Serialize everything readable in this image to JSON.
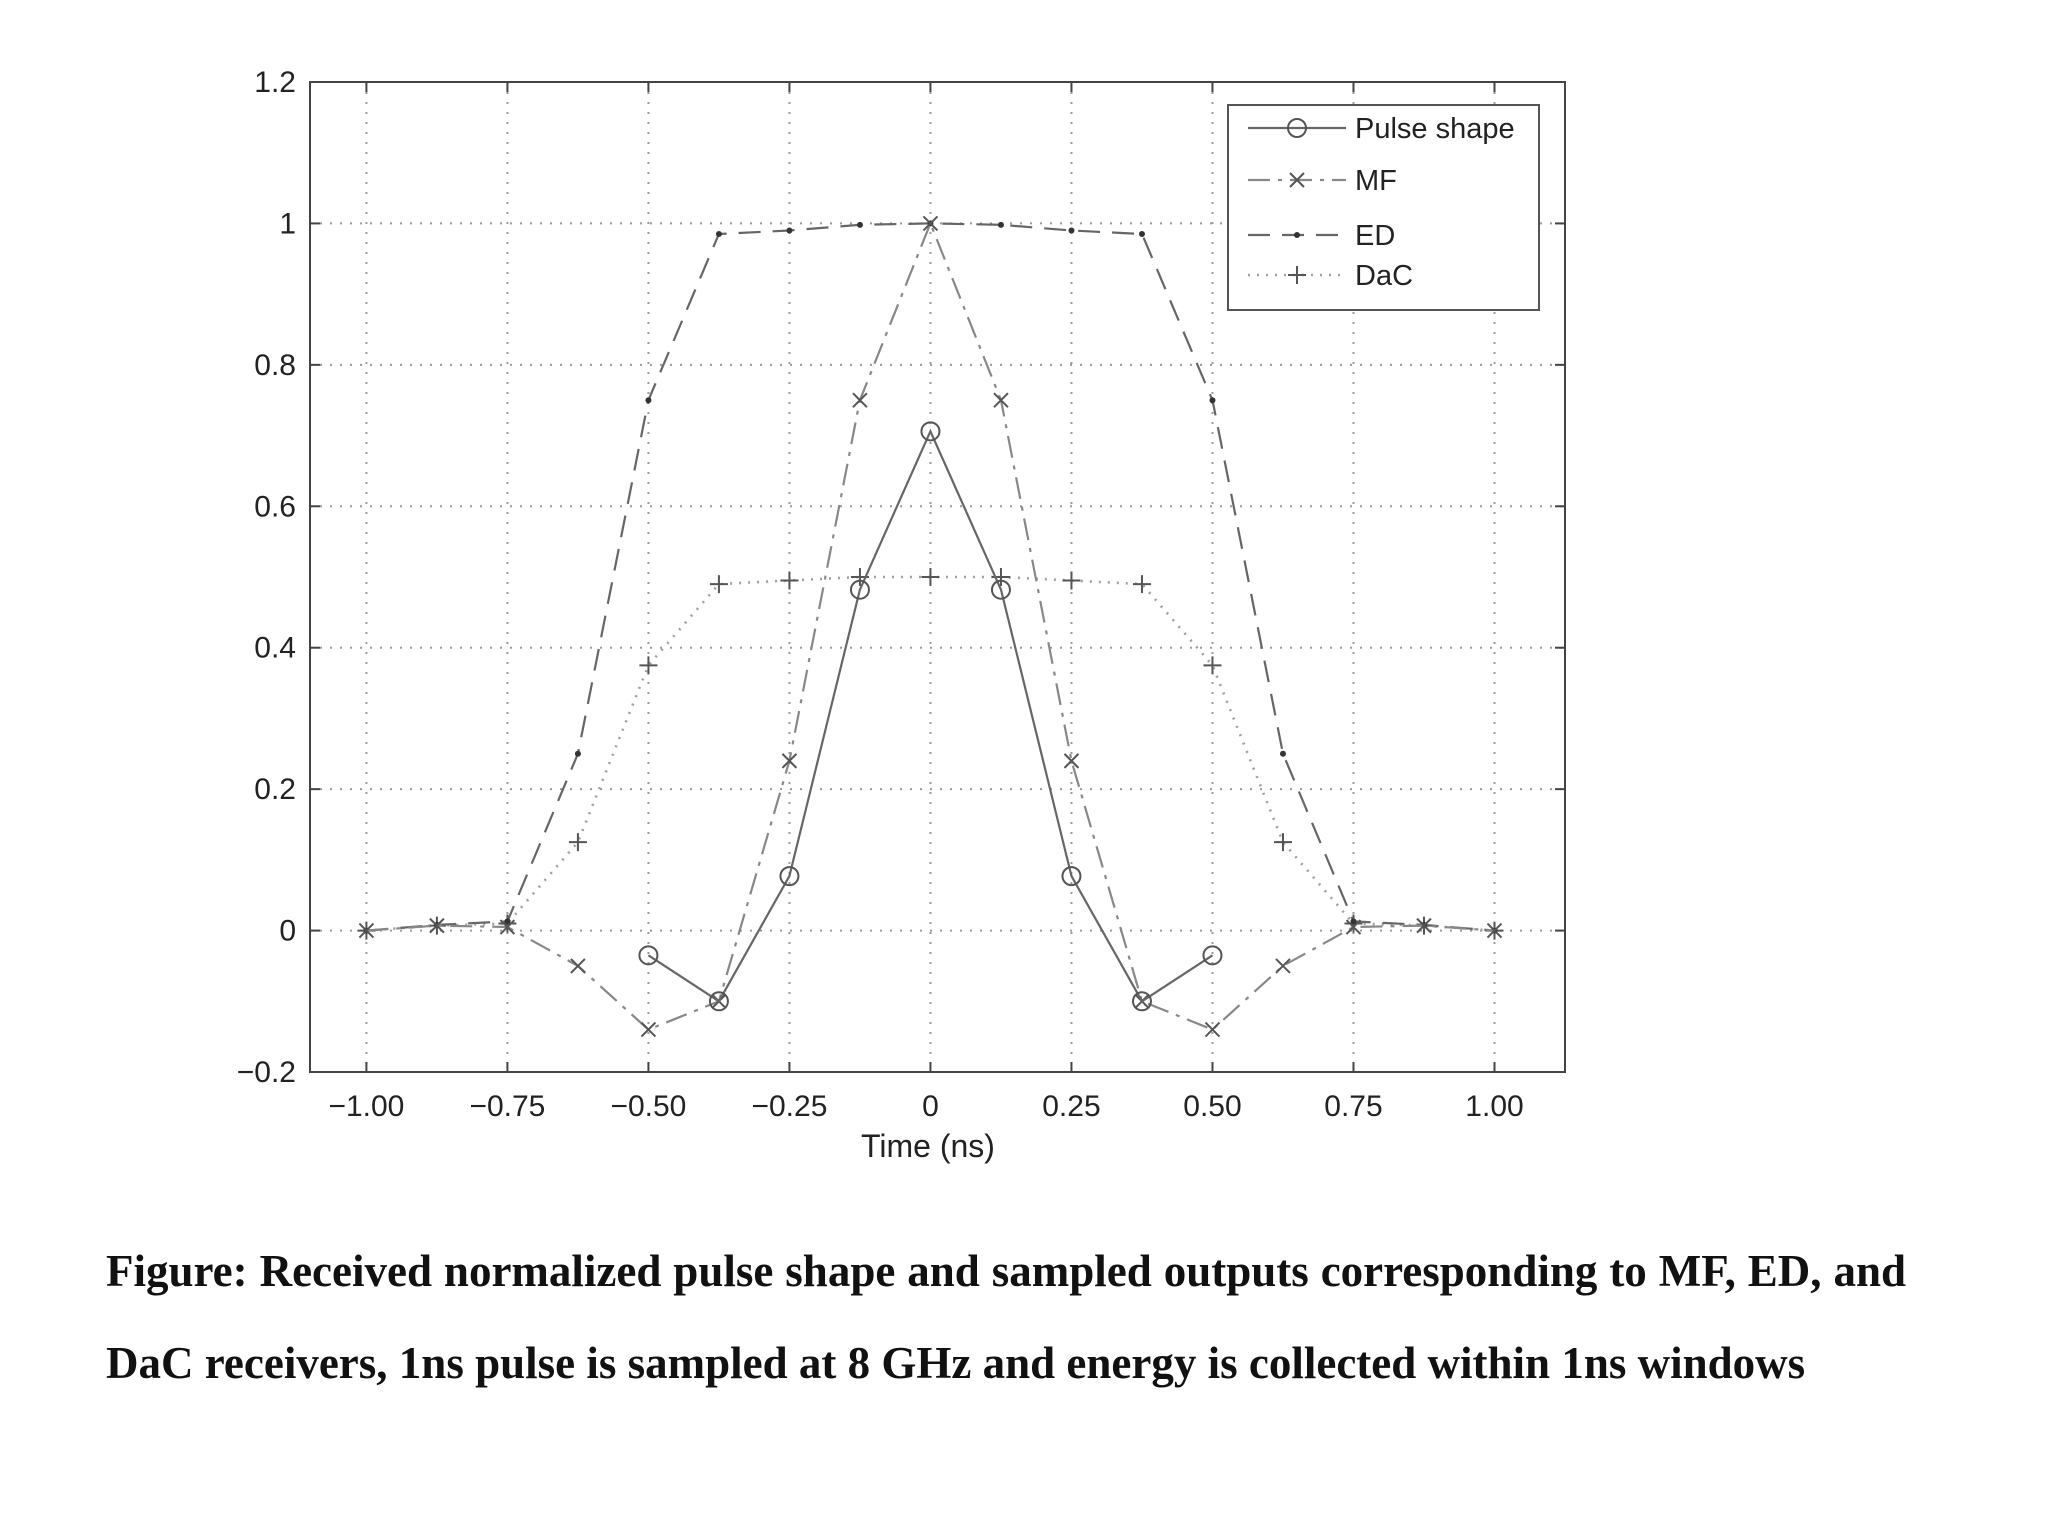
{
  "chart_data": {
    "type": "line",
    "xlabel": "Time (ns)",
    "ylabel": "",
    "xlim": [
      -1.1,
      1.125
    ],
    "ylim": [
      -0.2,
      1.2
    ],
    "xticks": [
      -1.0,
      -0.75,
      -0.5,
      -0.25,
      0,
      0.25,
      0.5,
      0.75,
      1.0
    ],
    "xtick_labels": [
      "−1.00",
      "−0.75",
      "−0.50",
      "−0.25",
      "0",
      "0.25",
      "0.50",
      "0.75",
      "1.00"
    ],
    "yticks": [
      -0.2,
      0,
      0.2,
      0.4,
      0.6,
      0.8,
      1.0,
      1.2
    ],
    "ytick_labels": [
      "−0.2",
      "0",
      "0.2",
      "0.4",
      "0.6",
      "0.8",
      "1",
      "1.2"
    ],
    "grid": true,
    "legend_position": "top-right",
    "series": [
      {
        "name": "Pulse shape",
        "marker": "circle",
        "line_style": "solid",
        "x": [
          -0.5,
          -0.375,
          -0.25,
          -0.125,
          0,
          0.125,
          0.25,
          0.375,
          0.5
        ],
        "y": [
          -0.035,
          -0.1,
          0.077,
          0.482,
          0.706,
          0.482,
          0.077,
          -0.1,
          -0.035
        ]
      },
      {
        "name": "MF",
        "marker": "x",
        "line_style": "dash-dot",
        "x": [
          -1.0,
          -0.875,
          -0.75,
          -0.625,
          -0.5,
          -0.375,
          -0.25,
          -0.125,
          0,
          0.125,
          0.25,
          0.375,
          0.5,
          0.625,
          0.75,
          0.875,
          1.0
        ],
        "y": [
          0,
          0.007,
          0.005,
          -0.05,
          -0.14,
          -0.1,
          0.24,
          0.75,
          1.0,
          0.75,
          0.24,
          -0.1,
          -0.14,
          -0.05,
          0.005,
          0.007,
          0
        ]
      },
      {
        "name": "ED",
        "marker": "dot",
        "line_style": "dashed",
        "x": [
          -1.0,
          -0.875,
          -0.75,
          -0.625,
          -0.5,
          -0.375,
          -0.25,
          -0.125,
          0,
          0.125,
          0.25,
          0.375,
          0.5,
          0.625,
          0.75,
          0.875,
          1.0
        ],
        "y": [
          0,
          0.008,
          0.013,
          0.25,
          0.75,
          0.985,
          0.99,
          0.998,
          1.0,
          0.998,
          0.99,
          0.985,
          0.75,
          0.25,
          0.013,
          0.008,
          0
        ]
      },
      {
        "name": "DaC",
        "marker": "plus",
        "line_style": "dotted",
        "x": [
          -1.0,
          -0.875,
          -0.75,
          -0.625,
          -0.5,
          -0.375,
          -0.25,
          -0.125,
          0,
          0.125,
          0.25,
          0.375,
          0.5,
          0.625,
          0.75,
          0.875,
          1.0
        ],
        "y": [
          0,
          0.007,
          0.01,
          0.125,
          0.375,
          0.49,
          0.495,
          0.5,
          0.5,
          0.5,
          0.495,
          0.49,
          0.375,
          0.125,
          0.01,
          0.007,
          0
        ]
      }
    ]
  },
  "caption": "Figure: Received normalized pulse shape and sampled outputs corresponding to MF, ED, and DaC receivers, 1ns pulse is sampled at 8 GHz and energy is collected within 1ns windows"
}
